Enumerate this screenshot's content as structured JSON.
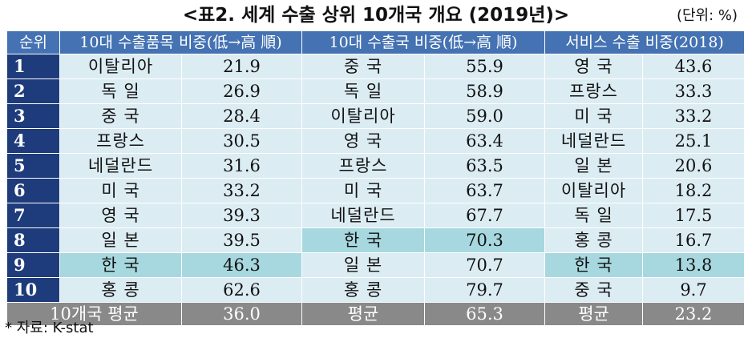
{
  "title": "<표2. 세계 수출 상위 10개국 개요 (2019년)>",
  "unit": "(단위:   %)",
  "headers": [
    "순위",
    "10대 수출품목 비중(低→高 順)",
    "10대 수출국 비중(低→高 順)",
    "서비스 수출 비중(2018)"
  ],
  "rows": [
    {
      "rank": "1",
      "c1": "이탈리아",
      "v1": "21.9",
      "c2": "중 국",
      "v2": "55.9",
      "c3": "영 국",
      "v3": "43.6"
    },
    {
      "rank": "2",
      "c1": "독 일",
      "v1": "26.9",
      "c2": "독 일",
      "v2": "58.9",
      "c3": "프랑스",
      "v3": "33.3"
    },
    {
      "rank": "3",
      "c1": "중 국",
      "v1": "28.4",
      "c2": "이탈리아",
      "v2": "59.0",
      "c3": "미 국",
      "v3": "33.2"
    },
    {
      "rank": "4",
      "c1": "프랑스",
      "v1": "30.5",
      "c2": "영 국",
      "v2": "63.4",
      "c3": "네덜란드",
      "v3": "25.1"
    },
    {
      "rank": "5",
      "c1": "네덜란드",
      "v1": "31.6",
      "c2": "프랑스",
      "v2": "63.5",
      "c3": "일 본",
      "v3": "20.6"
    },
    {
      "rank": "6",
      "c1": "미 국",
      "v1": "33.2",
      "c2": "미 국",
      "v2": "63.7",
      "c3": "이탈리아",
      "v3": "18.2"
    },
    {
      "rank": "7",
      "c1": "영 국",
      "v1": "39.3",
      "c2": "네덜란드",
      "v2": "67.7",
      "c3": "독 일",
      "v3": "17.5"
    },
    {
      "rank": "8",
      "c1": "일 본",
      "v1": "39.5",
      "c2": "한 국",
      "v2": "70.3",
      "c3": "홍 콩",
      "v3": "16.7"
    },
    {
      "rank": "9",
      "c1": "한 국",
      "v1": "46.3",
      "c2": "일 본",
      "v2": "70.7",
      "c3": "한 국",
      "v3": "13.8"
    },
    {
      "rank": "10",
      "c1": "홍 콩",
      "v1": "62.6",
      "c2": "홍 콩",
      "v2": "79.7",
      "c3": "중 국",
      "v3": "9.7"
    }
  ],
  "average": {
    "label": "10개국 평균",
    "v1": "36.0",
    "l2": "평균",
    "v2": "65.3",
    "l3": "평균",
    "v3": "23.2"
  },
  "source": "* 자료: K-stat",
  "colors": {
    "header": "#4472b2",
    "rank": "#1e3c7b",
    "cell": "#dcecf3",
    "highlight": "#a7d8e0",
    "average": "#898989"
  }
}
